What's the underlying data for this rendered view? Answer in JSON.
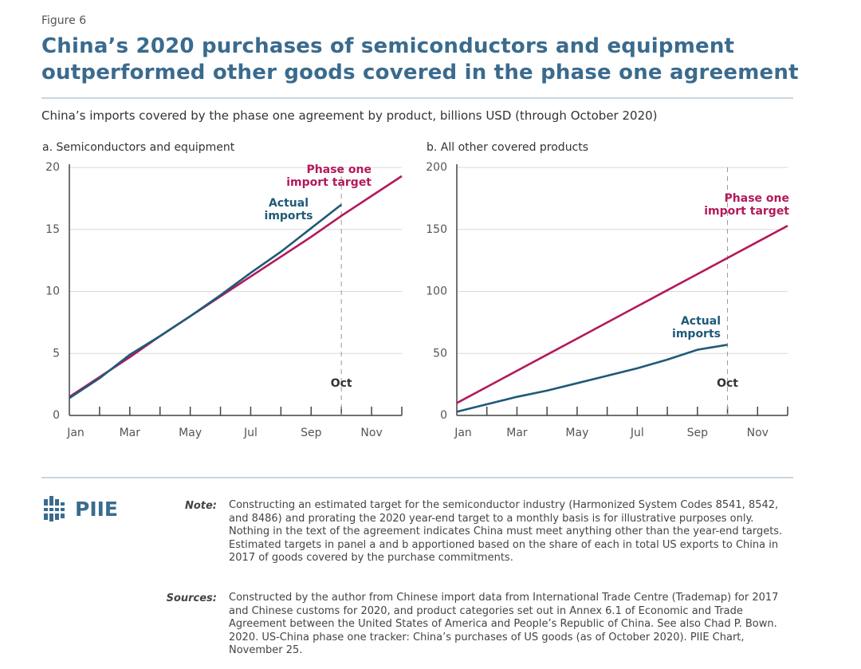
{
  "figure_label": "Figure 6",
  "title": [
    "China’s 2020 purchases of semiconductors and equipment",
    "outperformed other goods covered in the phase one agreement"
  ],
  "subtitle": "China’s imports covered by the phase one agreement by product, billions USD (through October 2020)",
  "chart_data": [
    {
      "type": "line",
      "title": "a. Semiconductors and equipment",
      "categories": [
        "Jan",
        null,
        "Mar",
        null,
        "May",
        null,
        "Jul",
        null,
        "Sep",
        null,
        "Nov",
        null
      ],
      "series": [
        {
          "name": "Phase one import target",
          "color": "#b3195b",
          "values": [
            1.5,
            3.1,
            4.7,
            6.4,
            8.0,
            9.6,
            11.2,
            12.8,
            14.4,
            16.1,
            17.7,
            19.3
          ]
        },
        {
          "name": "Actual imports",
          "color": "#1f5a78",
          "values": [
            1.4,
            3.0,
            4.9,
            6.4,
            8.0,
            9.7,
            11.5,
            13.2,
            15.1,
            17.0,
            null,
            null
          ]
        }
      ],
      "annotation": "Oct",
      "ylim": [
        0,
        20
      ],
      "yticks": [
        0,
        5,
        10,
        15,
        20
      ],
      "grid": true
    },
    {
      "type": "line",
      "title": "b. All other covered products",
      "categories": [
        "Jan",
        null,
        "Mar",
        null,
        "May",
        null,
        "Jul",
        null,
        "Sep",
        null,
        "Nov",
        null
      ],
      "series": [
        {
          "name": "Phase one import target",
          "color": "#b3195b",
          "values": [
            10,
            23,
            36,
            49,
            62,
            75,
            88,
            101,
            114,
            127,
            140,
            153
          ]
        },
        {
          "name": "Actual imports",
          "color": "#1f5a78",
          "values": [
            3,
            9,
            15,
            20,
            26,
            32,
            38,
            45,
            53,
            57,
            null,
            null
          ]
        }
      ],
      "annotation": "Oct",
      "ylim": [
        0,
        200
      ],
      "yticks": [
        0,
        50,
        100,
        150,
        200
      ],
      "grid": true
    }
  ],
  "logo": "PIIE",
  "note_label": "Note:",
  "note": "Constructing an estimated target for the semiconductor industry (Harmonized System Codes 8541, 8542, and 8486) and prorating the 2020 year-end target to a monthly basis is for illustrative purposes only. Nothing in the text of the agreement indicates China must meet anything other than the year-end targets. Estimated targets in panel a and b apportioned based on the share of each in total US exports to China in 2017 of goods covered by the purchase commitments.",
  "sources_label": "Sources:",
  "sources": "Constructed by the author from Chinese import data from International Trade Centre (Trademap) for 2017 and Chinese customs for 2020, and product categories set out in Annex 6.1 of Economic and Trade Agreement between the United States of America and People’s Republic of China. See also Chad P. Bown. 2020. US-China phase one tracker: China’s purchases of US goods (as of October 2020). PIIE Chart, November 25."
}
